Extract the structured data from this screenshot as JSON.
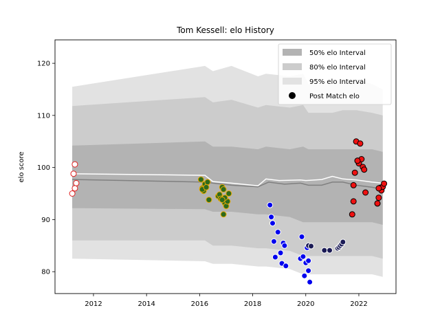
{
  "chart_data": {
    "type": "scatter",
    "title": "Tom Kessell: elo History",
    "xlabel": "",
    "ylabel": "elo score",
    "xlim": [
      2010.55,
      2023.4
    ],
    "ylim": [
      75.8,
      124.5
    ],
    "xticks": [
      2012,
      2014,
      2016,
      2018,
      2020,
      2022
    ],
    "yticks": [
      80,
      90,
      100,
      110,
      120
    ],
    "grid": false,
    "legend_position": "top-right",
    "legend": [
      {
        "label": "50% elo Interval",
        "color": "#b3b3b3"
      },
      {
        "label": "80% elo Interval",
        "color": "#cccccc"
      },
      {
        "label": "95% elo Interval",
        "color": "#e2e2e2"
      },
      {
        "label": "Post Match elo",
        "color": "#000000"
      }
    ],
    "bands": {
      "x": [
        2011.2,
        2016.2,
        2016.5,
        2017.2,
        2018.2,
        2018.5,
        2019.4,
        2019.9,
        2020.1,
        2021.0,
        2021.4,
        2021.9,
        2022.5,
        2022.9
      ],
      "p95_upper": [
        115.5,
        119.5,
        118.5,
        119.5,
        117.5,
        118,
        117.5,
        118,
        116,
        116,
        117,
        117,
        116,
        115
      ],
      "p80_upper": [
        111.8,
        113.5,
        112.5,
        113,
        111.5,
        112,
        111.5,
        112,
        110.5,
        110.5,
        111,
        111,
        110.5,
        110
      ],
      "p50_upper": [
        104.2,
        105,
        104,
        104,
        103.5,
        104,
        103.5,
        104,
        103.5,
        103.5,
        103.5,
        103.5,
        103.5,
        103
      ],
      "p50_lower": [
        92.2,
        92,
        91.5,
        91.5,
        91,
        91,
        90.5,
        89.5,
        89.5,
        89.5,
        89.5,
        89.5,
        89.5,
        89
      ],
      "p80_lower": [
        86,
        86,
        85,
        85,
        84.5,
        84.5,
        84,
        83,
        83,
        83,
        83,
        83,
        83,
        82.5
      ],
      "p95_lower": [
        82.5,
        82,
        81.5,
        81.5,
        81,
        81,
        80.5,
        79.5,
        79.5,
        79.5,
        79.5,
        79.5,
        79.5,
        79
      ]
    },
    "median_line": {
      "x": [
        2011.2,
        2016.2,
        2016.5,
        2017.2,
        2018.2,
        2018.6,
        2019.2,
        2019.8,
        2020.1,
        2020.6,
        2021.0,
        2021.4,
        2021.9,
        2022.5,
        2022.9
      ],
      "y": [
        97.7,
        97.2,
        97.0,
        96.6,
        96.3,
        97.2,
        96.8,
        97.0,
        96.6,
        96.6,
        97.2,
        97.2,
        96.6,
        96.2,
        95.8
      ]
    },
    "mean_line": {
      "x": [
        2011.2,
        2016.2,
        2016.5,
        2017.2,
        2018.2,
        2018.5,
        2019.0,
        2019.8,
        2020.0,
        2020.6,
        2021.0,
        2021.4,
        2021.9,
        2022.5,
        2022.9
      ],
      "y": [
        98.8,
        98.5,
        97.3,
        97.0,
        96.5,
        97.8,
        97.5,
        97.6,
        97.5,
        97.7,
        98.3,
        97.8,
        97.6,
        97.2,
        97.0
      ]
    },
    "series": [
      {
        "fill": "#ffffff",
        "edge": "#e02020",
        "x": [
          2011.3,
          2011.25,
          2011.35,
          2011.3,
          2011.2
        ],
        "y": [
          100.6,
          98.8,
          97.0,
          96.0,
          95.0
        ]
      },
      {
        "fill": "#2d6a1e",
        "edge": "#e8a800",
        "x": [
          2016.05,
          2016.1,
          2016.15,
          2016.2,
          2016.3,
          2016.1,
          2016.25,
          2016.35,
          2016.7,
          2016.75,
          2016.8,
          2016.85,
          2016.9,
          2016.95,
          2017.0,
          2017.05,
          2017.1,
          2016.9,
          2016.95,
          2016.85
        ],
        "y": [
          97.7,
          96.0,
          95.5,
          96.8,
          97.2,
          95.8,
          96.2,
          93.8,
          94.5,
          94.8,
          94.0,
          96.2,
          95.8,
          93.2,
          92.6,
          93.5,
          95.0,
          91.0,
          94.2,
          93.8
        ]
      },
      {
        "fill": "#0000ee",
        "edge": "#ffffff",
        "x": [
          2018.65,
          2018.7,
          2018.75,
          2018.8,
          2018.85,
          2018.95,
          2019.05,
          2019.1,
          2019.15,
          2019.2,
          2019.25,
          2019.8,
          2019.85,
          2019.9,
          2019.95,
          2020.0,
          2020.05,
          2020.1,
          2020.15,
          2020.1
        ],
        "y": [
          92.8,
          90.5,
          89.3,
          85.8,
          82.8,
          87.6,
          83.6,
          81.6,
          85.5,
          85.0,
          81.1,
          82.5,
          86.7,
          82.9,
          79.2,
          81.7,
          84.6,
          82.1,
          78.0,
          80.2
        ]
      },
      {
        "fill": "#1a1a55",
        "edge": "#ffffff",
        "x": [
          2020.1,
          2020.2,
          2020.7,
          2020.9,
          2021.2,
          2021.25,
          2021.3,
          2021.35,
          2021.4
        ],
        "y": [
          85.0,
          84.9,
          84.1,
          84.1,
          84.5,
          84.7,
          85.0,
          85.3,
          85.7
        ]
      },
      {
        "fill": "#ee1111",
        "edge": "#000000",
        "x": [
          2021.8,
          2021.85,
          2021.9,
          2021.95,
          2022.0,
          2022.05,
          2022.1,
          2022.15,
          2022.2,
          2022.25,
          2021.75,
          2021.8,
          2021.95,
          2022.7,
          2022.75,
          2022.8,
          2022.85,
          2022.9,
          2022.95,
          2022.7,
          2022.75
        ],
        "y": [
          96.6,
          99.0,
          105.0,
          101.3,
          100.8,
          104.6,
          101.6,
          100.1,
          99.6,
          95.2,
          91.0,
          93.5,
          101.3,
          93.1,
          94.2,
          96.1,
          95.6,
          96.3,
          96.9,
          93.1,
          96.0
        ]
      }
    ]
  }
}
